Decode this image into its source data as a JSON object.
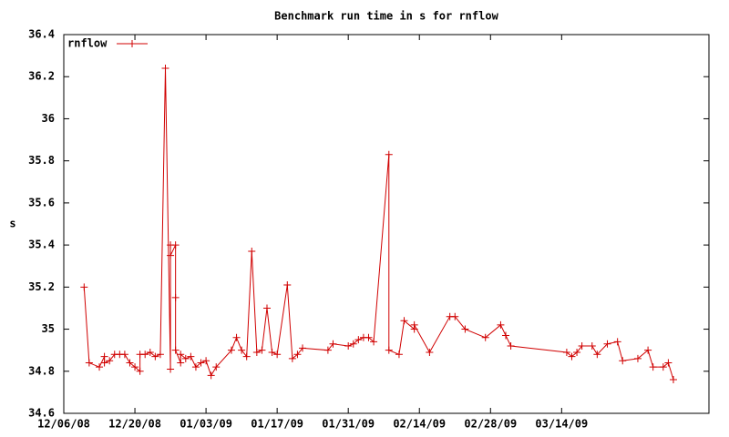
{
  "chart_data": {
    "type": "line",
    "title": "Benchmark run time in s for rnflow",
    "y_label": "s",
    "x": [
      "12/10/08",
      "12/11/08",
      "12/13/08",
      "12/14/08",
      "12/14/08",
      "12/15/08",
      "12/16/08",
      "12/17/08",
      "12/18/08",
      "12/19/08",
      "12/20/08",
      "12/21/08",
      "12/21/08",
      "12/22/08",
      "12/23/08",
      "12/24/08",
      "12/25/08",
      "12/26/08",
      "12/27/08",
      "12/27/08",
      "12/27/08",
      "12/28/08",
      "12/28/08",
      "12/28/08",
      "12/29/08",
      "12/29/08",
      "12/30/08",
      "12/31/08",
      "01/01/09",
      "01/02/09",
      "01/03/09",
      "01/04/09",
      "01/05/09",
      "01/08/09",
      "01/09/09",
      "01/10/09",
      "01/11/09",
      "01/12/09",
      "01/13/09",
      "01/14/09",
      "01/15/09",
      "01/16/09",
      "01/17/09",
      "01/19/09",
      "01/20/09",
      "01/21/09",
      "01/22/09",
      "01/27/09",
      "01/28/09",
      "01/31/09",
      "02/01/09",
      "02/02/09",
      "02/03/09",
      "02/04/09",
      "02/05/09",
      "02/08/09",
      "02/08/09",
      "02/10/09",
      "02/11/09",
      "02/13/09",
      "02/13/09",
      "02/16/09",
      "02/20/09",
      "02/21/09",
      "02/23/09",
      "02/27/09",
      "03/02/09",
      "03/03/09",
      "03/04/09",
      "03/15/09",
      "03/16/09",
      "03/17/09",
      "03/18/09",
      "03/20/09",
      "03/21/09",
      "03/23/09",
      "03/25/09",
      "03/26/09",
      "03/29/09",
      "03/31/09",
      "04/01/09",
      "04/03/09",
      "04/04/09",
      "04/05/09"
    ],
    "series": [
      {
        "name": "rnflow",
        "color": "#d00000",
        "values": [
          35.2,
          34.84,
          34.82,
          34.87,
          34.84,
          34.85,
          34.88,
          34.88,
          34.88,
          34.84,
          34.82,
          34.8,
          34.88,
          34.88,
          34.89,
          34.87,
          34.88,
          36.24,
          34.81,
          35.4,
          35.35,
          35.4,
          35.15,
          34.9,
          34.84,
          34.88,
          34.86,
          34.87,
          34.82,
          34.84,
          34.85,
          34.78,
          34.82,
          34.9,
          34.96,
          34.9,
          34.87,
          35.37,
          34.89,
          34.9,
          35.1,
          34.89,
          34.88,
          35.21,
          34.86,
          34.88,
          34.91,
          34.9,
          34.93,
          34.92,
          34.93,
          34.95,
          34.96,
          34.96,
          34.94,
          35.83,
          34.9,
          34.88,
          35.04,
          35.0,
          35.02,
          34.89,
          35.06,
          35.06,
          35.0,
          34.96,
          35.02,
          34.97,
          34.92,
          34.89,
          34.87,
          34.89,
          34.92,
          34.92,
          34.88,
          34.93,
          34.94,
          34.85,
          34.86,
          34.9,
          34.82,
          34.82,
          34.84,
          34.76
        ]
      }
    ],
    "xlim": [
      "12/06/08",
      "04/12/09"
    ],
    "xticks": [
      "12/06/08",
      "12/20/08",
      "01/03/09",
      "01/17/09",
      "01/31/09",
      "02/14/09",
      "02/28/09",
      "03/14/09"
    ],
    "ylim": [
      34.6,
      36.4
    ],
    "yticks": [
      34.6,
      34.8,
      35,
      35.2,
      35.4,
      35.6,
      35.8,
      36,
      36.2,
      36.4
    ],
    "legend": "top-left"
  }
}
